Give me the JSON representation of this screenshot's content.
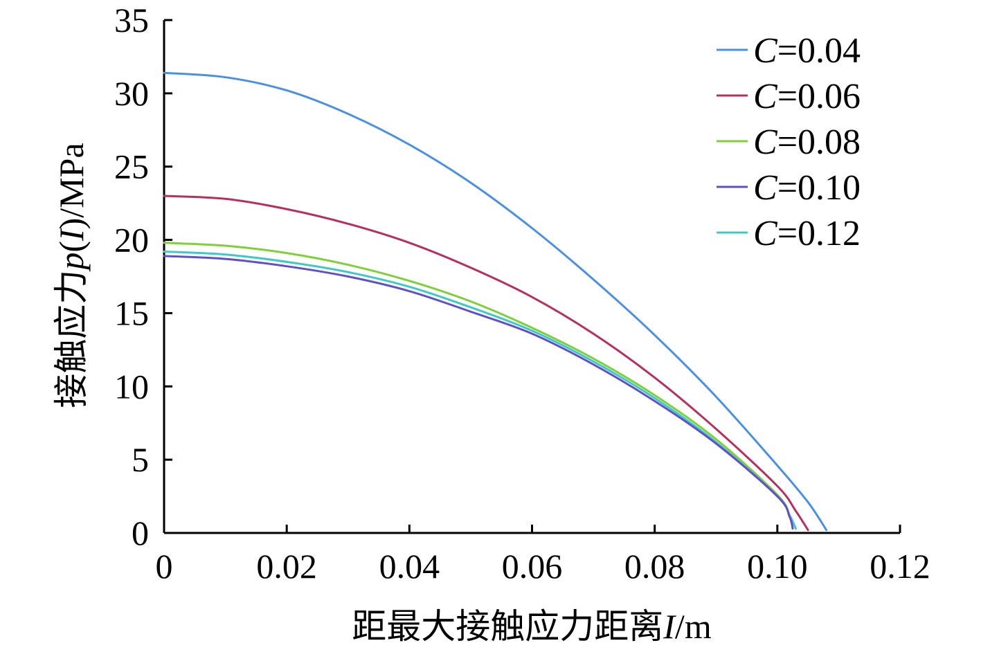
{
  "chart_data": {
    "type": "line",
    "xlabel": {
      "prefix": "距最大接触应力距离",
      "var": "I",
      "suffix": "/m"
    },
    "ylabel": {
      "prefix": "接触应力",
      "var": "p",
      "paren_open": "(",
      "var2": "I",
      "paren_close": ")",
      "suffix": "/MPa"
    },
    "xlim": [
      0,
      0.12
    ],
    "ylim": [
      0,
      35
    ],
    "x_ticks": [
      0,
      0.02,
      0.04,
      0.06,
      0.08,
      0.1,
      0.12
    ],
    "x_tick_labels": [
      "0",
      "0.02",
      "0.04",
      "0.06",
      "0.08",
      "0.10",
      "0.12"
    ],
    "y_ticks": [
      0,
      5,
      10,
      15,
      20,
      25,
      30,
      35
    ],
    "y_tick_labels": [
      "0",
      "5",
      "10",
      "15",
      "20",
      "25",
      "30",
      "35"
    ],
    "grid": false,
    "legend_position": "top-right",
    "series": [
      {
        "name": "C=0.04",
        "name_var": "C",
        "name_rest": "=0.04",
        "color": "#4a90e2",
        "x": [
          0,
          0.01,
          0.02,
          0.03,
          0.04,
          0.05,
          0.06,
          0.07,
          0.08,
          0.09,
          0.1,
          0.105,
          0.108
        ],
        "y": [
          31.4,
          31.1,
          30.2,
          28.6,
          26.5,
          23.9,
          20.8,
          17.3,
          13.5,
          9.3,
          4.6,
          2.1,
          0.2
        ]
      },
      {
        "name": "C=0.06",
        "name_var": "C",
        "name_rest": "=0.06",
        "color": "#b5305a",
        "x": [
          0,
          0.01,
          0.02,
          0.03,
          0.04,
          0.05,
          0.06,
          0.07,
          0.08,
          0.09,
          0.1,
          0.103,
          0.105
        ],
        "y": [
          23.0,
          22.8,
          22.1,
          21.1,
          19.8,
          18.1,
          16.1,
          13.6,
          10.6,
          7.1,
          3.2,
          1.5,
          0.2
        ]
      },
      {
        "name": "C=0.08",
        "name_var": "C",
        "name_rest": "=0.08",
        "color": "#7ecf3a",
        "x": [
          0,
          0.01,
          0.02,
          0.03,
          0.04,
          0.05,
          0.06,
          0.07,
          0.08,
          0.09,
          0.1,
          0.102,
          0.103
        ],
        "y": [
          19.8,
          19.6,
          19.1,
          18.3,
          17.2,
          15.8,
          14.0,
          11.9,
          9.4,
          6.4,
          2.6,
          1.2,
          0.3
        ]
      },
      {
        "name": "C=0.10",
        "name_var": "C",
        "name_rest": "=0.10",
        "color": "#6050c8",
        "x": [
          0,
          0.01,
          0.02,
          0.03,
          0.04,
          0.05,
          0.06,
          0.07,
          0.08,
          0.09,
          0.1,
          0.102,
          0.1025
        ],
        "y": [
          18.9,
          18.7,
          18.2,
          17.5,
          16.5,
          15.1,
          13.6,
          11.5,
          9.0,
          6.1,
          2.5,
          1.1,
          0.3
        ]
      },
      {
        "name": "C=0.12",
        "name_var": "C",
        "name_rest": "=0.12",
        "color": "#3ec8c8",
        "x": [
          0,
          0.01,
          0.02,
          0.03,
          0.04,
          0.05,
          0.06,
          0.07,
          0.08,
          0.09,
          0.1,
          0.102,
          0.103
        ],
        "y": [
          19.2,
          19.0,
          18.5,
          17.8,
          16.8,
          15.4,
          13.8,
          11.7,
          9.2,
          6.2,
          2.5,
          1.2,
          0.3
        ]
      }
    ]
  }
}
